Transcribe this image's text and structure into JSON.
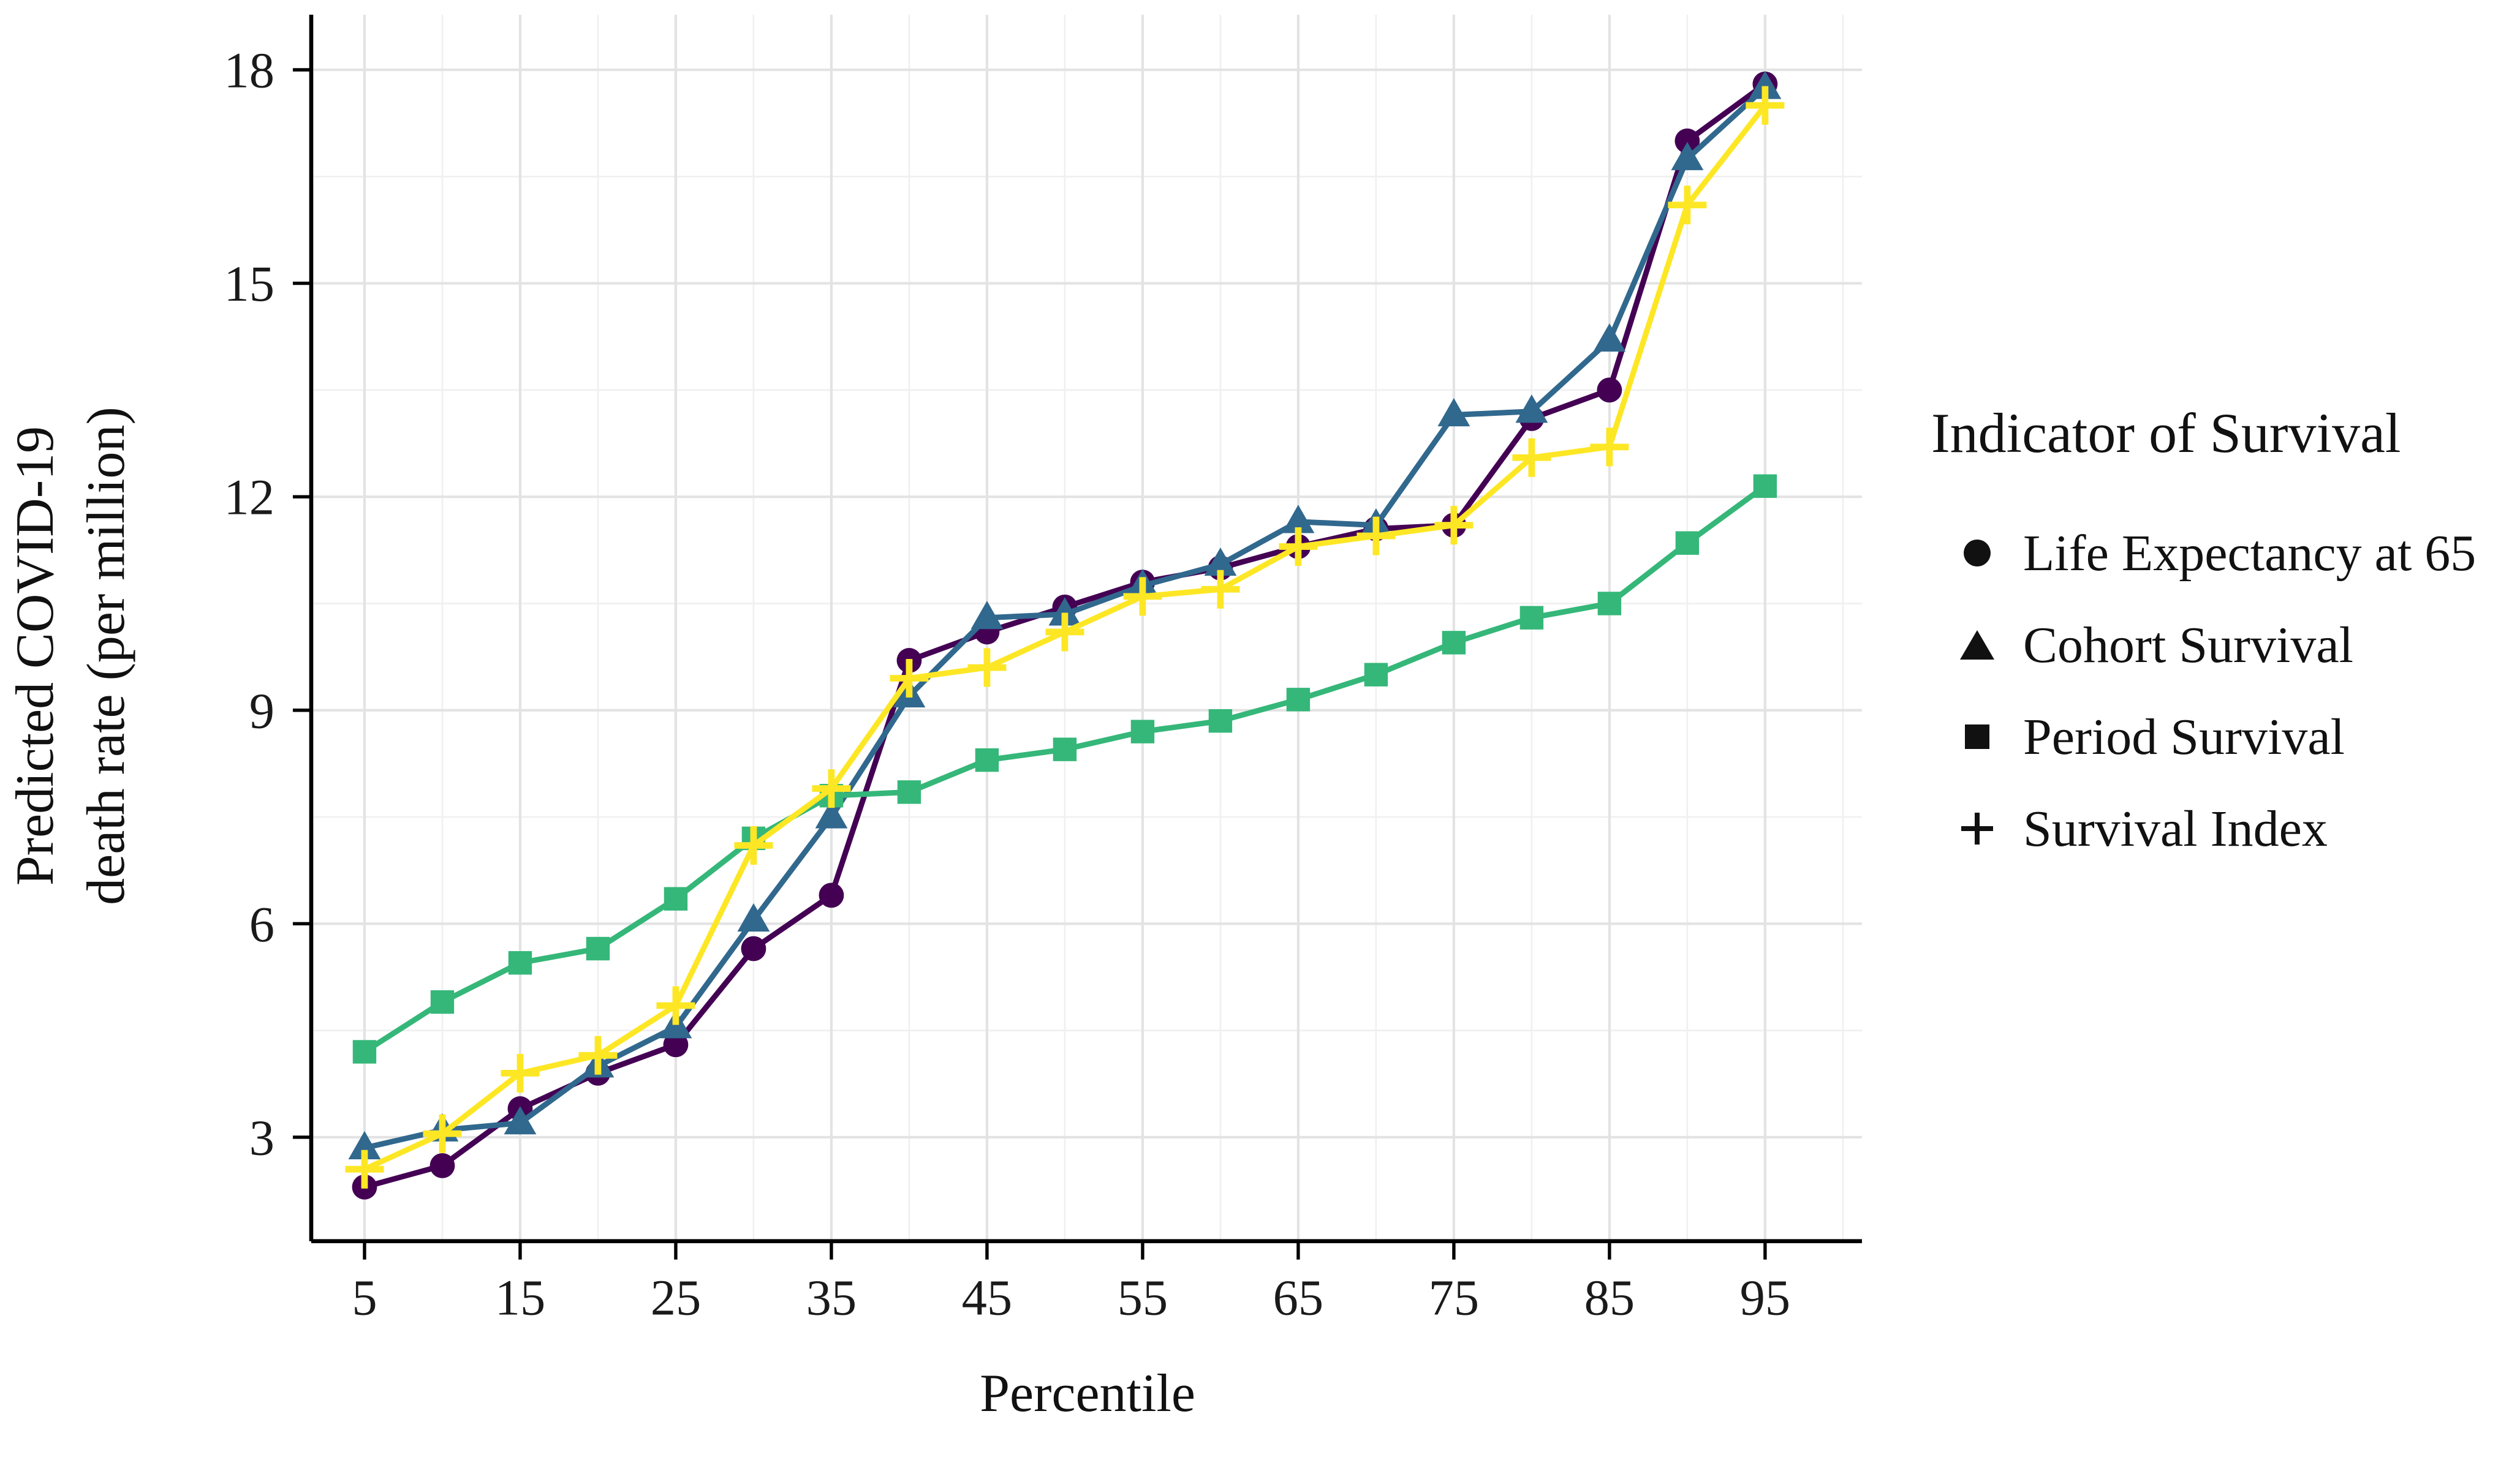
{
  "axes": {
    "x_title": "Percentile",
    "y_title_line1": "Predicted COVID-19",
    "y_title_line2": "death rate (per million)"
  },
  "legend": {
    "title": "Indicator of Survival",
    "items": [
      {
        "marker": "circle",
        "label": "Life Expectancy at 65"
      },
      {
        "marker": "triangle",
        "label": "Cohort Survival"
      },
      {
        "marker": "square",
        "label": "Period Survival"
      },
      {
        "marker": "plus",
        "label": "Survival Index"
      }
    ]
  },
  "chart_data": {
    "type": "line",
    "title": "",
    "xlabel": "Percentile",
    "ylabel": "Predicted COVID-19 death rate (per million)",
    "x": [
      5,
      10,
      15,
      20,
      25,
      30,
      35,
      40,
      45,
      50,
      55,
      60,
      65,
      70,
      75,
      80,
      85,
      90,
      95
    ],
    "x_ticks": [
      5,
      15,
      25,
      35,
      45,
      55,
      65,
      75,
      85,
      95
    ],
    "y_ticks": [
      3,
      6,
      9,
      12,
      15,
      18
    ],
    "xlim": [
      1.5,
      101.5
    ],
    "ylim": [
      1.5,
      18.8
    ],
    "grid": true,
    "legend_position": "right",
    "series": [
      {
        "name": "Life Expectancy at 65",
        "marker": "circle",
        "color": "#440154",
        "values": [
          2.3,
          2.6,
          3.4,
          3.9,
          4.3,
          5.65,
          6.4,
          9.7,
          10.1,
          10.45,
          10.8,
          11.0,
          11.3,
          11.55,
          11.6,
          13.1,
          13.5,
          17.0,
          17.8
        ]
      },
      {
        "name": "Cohort Survival",
        "marker": "triangle",
        "color": "#31688E",
        "values": [
          2.85,
          3.1,
          3.2,
          4.0,
          4.55,
          6.05,
          7.5,
          9.2,
          10.3,
          10.35,
          10.75,
          11.05,
          11.65,
          11.6,
          13.15,
          13.2,
          14.2,
          16.75,
          17.75
        ]
      },
      {
        "name": "Period Survival",
        "marker": "square",
        "color": "#35B779",
        "values": [
          4.2,
          4.9,
          5.45,
          5.65,
          6.35,
          7.2,
          7.8,
          7.85,
          8.3,
          8.45,
          8.7,
          8.85,
          9.15,
          9.5,
          9.95,
          10.3,
          10.5,
          11.35,
          12.15
        ]
      },
      {
        "name": "Survival Index",
        "marker": "plus",
        "color": "#FDE725",
        "values": [
          2.55,
          3.05,
          3.9,
          4.15,
          4.85,
          7.1,
          7.9,
          9.45,
          9.6,
          10.1,
          10.6,
          10.7,
          11.3,
          11.45,
          11.6,
          12.55,
          12.7,
          16.1,
          17.5
        ]
      }
    ],
    "style": {
      "grid_major_color": "#E3E3E3",
      "grid_minor_color": "#F0F0F0",
      "axis_color": "#000000",
      "background": "#FFFFFF"
    }
  }
}
